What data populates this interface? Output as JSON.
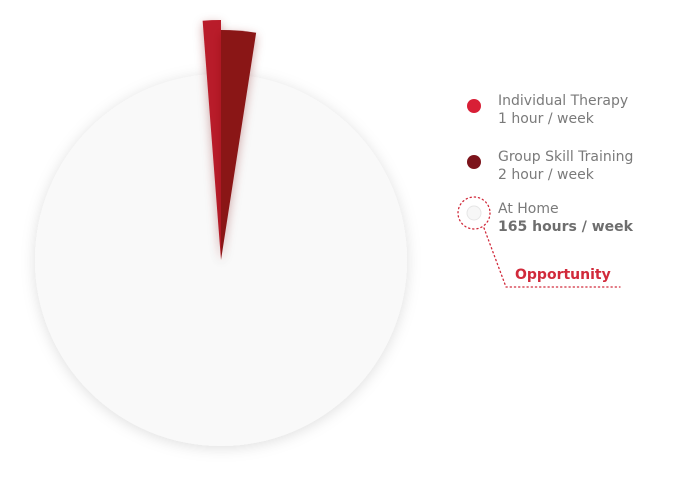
{
  "chart_data": {
    "type": "pie",
    "title": "",
    "categories": [
      "Individual Therapy",
      "Group Skill Training",
      "At Home"
    ],
    "values": [
      1,
      2,
      165
    ],
    "unit": "hours / week",
    "legend_position": "right",
    "series": [
      {
        "name": "Individual Therapy",
        "value": 1,
        "detail": "1 hour / week",
        "color": "#b91d2a",
        "legend_color": "#d81f36"
      },
      {
        "name": "Group Skill Training",
        "value": 2,
        "detail": "2 hour / week",
        "color": "#8a1419",
        "legend_color": "#7c141b"
      },
      {
        "name": "At Home",
        "value": 165,
        "detail": "165 hours / week",
        "color": "#f9f9f9",
        "legend_color": "#f7f7f7"
      }
    ],
    "callout": {
      "label": "Opportunity",
      "target": "At Home",
      "color": "#d12a3b"
    }
  }
}
